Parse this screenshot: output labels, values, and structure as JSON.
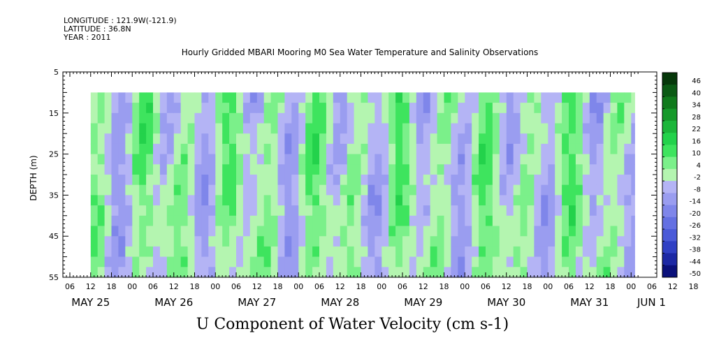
{
  "header": {
    "longitude": "LONGITUDE : 121.9W(-121.9)",
    "latitude": "LATITUDE : 36.8N",
    "year": "YEAR : 2011",
    "title": "Hourly Gridded MBARI Mooring M0 Sea Water Temperature and Salinity Observations"
  },
  "chart_data": {
    "type": "heatmap",
    "title": "U Component of Water Velocity (cm s-1)",
    "ylabel": "DEPTH (m)",
    "ylim": [
      55,
      5
    ],
    "y_ticks": [
      5,
      15,
      25,
      35,
      45,
      55
    ],
    "data_depth_range": [
      10,
      55
    ],
    "x_hour_ticks": [
      "06",
      "12",
      "18",
      "00",
      "06",
      "12",
      "18",
      "00",
      "06",
      "12",
      "18",
      "00",
      "06",
      "12",
      "18",
      "00",
      "06",
      "12",
      "18",
      "00",
      "06",
      "12",
      "18",
      "00",
      "06",
      "12",
      "18",
      "00",
      "06",
      "12",
      "18",
      "00"
    ],
    "x_date_labels": [
      "MAY 25",
      "MAY 26",
      "MAY 27",
      "MAY 28",
      "MAY 29",
      "MAY 30",
      "MAY 31",
      "JUN  1"
    ],
    "data_start": "MAY 25 12:00",
    "data_end": "JUN 1 01:00",
    "colorbar_levels": [
      "46",
      "40",
      "34",
      "28",
      "22",
      "16",
      "10",
      "4",
      "-2",
      "-8",
      "-14",
      "-20",
      "-26",
      "-32",
      "-38",
      "-44",
      "-50"
    ],
    "colorbar_range": [
      -50,
      52
    ],
    "colors": {
      "strong_positive": "#0a3d0a",
      "positive": "#22dd44",
      "weak_positive": "#a8f0a8",
      "weak_negative": "#a8a8f0",
      "negative": "#4a5ae0",
      "strong_negative": "#0a0a6a"
    }
  }
}
